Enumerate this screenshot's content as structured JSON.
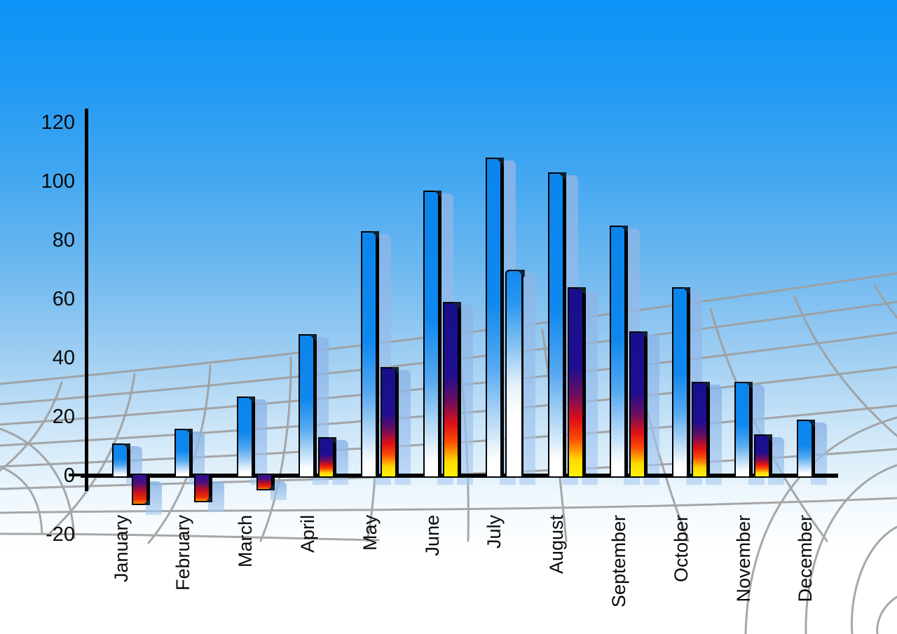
{
  "chart_data": {
    "type": "bar",
    "title": "",
    "xlabel": "",
    "ylabel": "",
    "categories": [
      "January",
      "February",
      "March",
      "April",
      "May",
      "June",
      "July",
      "August",
      "September",
      "October",
      "November",
      "December"
    ],
    "ytick_labels": [
      "120",
      "100",
      "80",
      "60",
      "40",
      "20",
      "0",
      "-20"
    ],
    "yticks": [
      120,
      100,
      80,
      60,
      40,
      20,
      0,
      -20
    ],
    "ylim": [
      -20,
      120
    ],
    "series": [
      {
        "name": "primary-blue-bars",
        "values": [
          11,
          16,
          27,
          48,
          83,
          97,
          108,
          103,
          85,
          64,
          32,
          19
        ]
      },
      {
        "name": "secondary-gradient-bars",
        "values": [
          -10,
          -9,
          -5,
          13,
          37,
          59,
          70,
          64,
          49,
          32,
          14,
          null
        ]
      }
    ],
    "legend_position": "none",
    "grid": "perspective-wireframe-floor",
    "notes": {
      "secondary_blue_months": [
        "July"
      ],
      "months_without_secondary": [
        "December"
      ],
      "bar_style": "3d beveled bars with translucent light-blue drop shadows"
    }
  },
  "colors": {
    "sky_top": "#0c93f7",
    "sky_bottom": "#ffffff",
    "bar_blue_top": "#0a85ec",
    "bar_gradient_navy": "#1c0f8e",
    "bar_gradient_red": "#e31013",
    "bar_gradient_yellow": "#fff200",
    "shadow_bar": "#9cc2ee",
    "grid_line": "#9e9e9e",
    "axis": "#000000",
    "label_text": "#0a0a0a"
  }
}
